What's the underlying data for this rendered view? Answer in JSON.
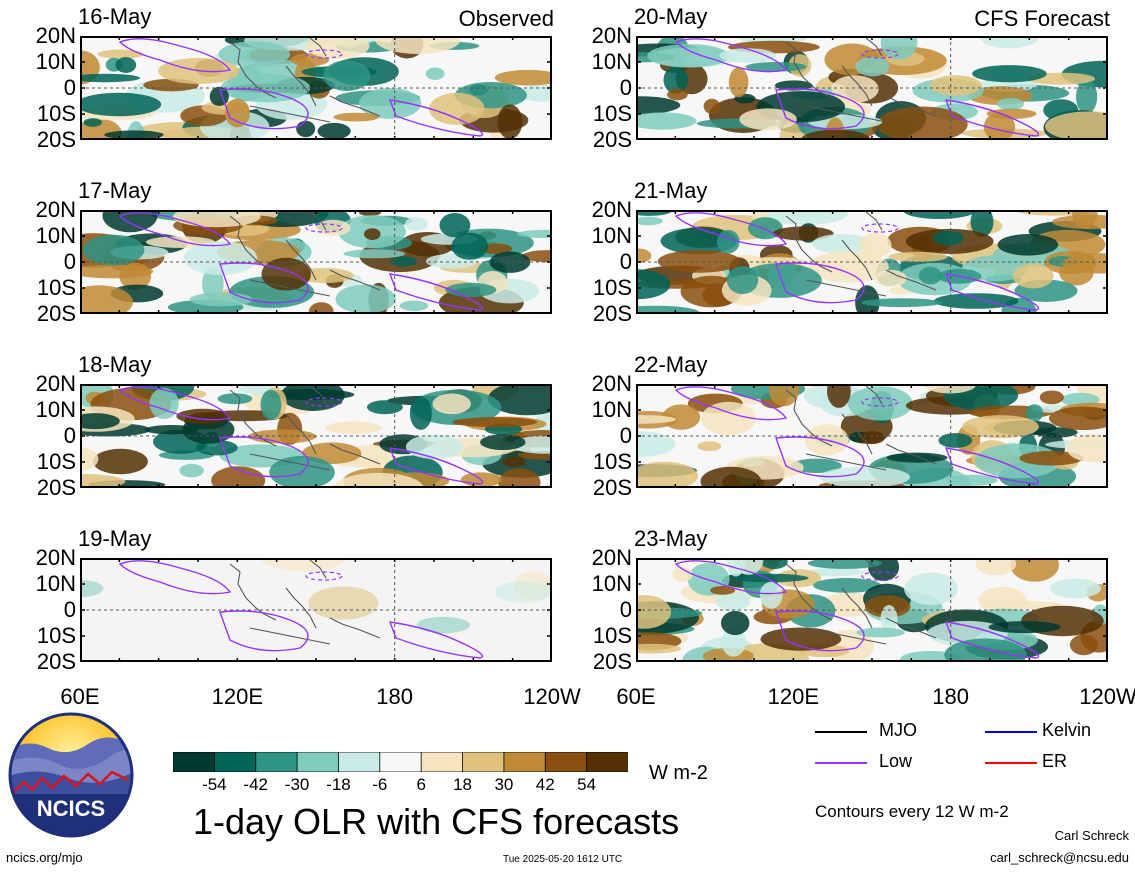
{
  "panels": [
    {
      "date": "16-May",
      "corner": "Observed",
      "col": 0,
      "row": 0,
      "observed": true
    },
    {
      "date": "17-May",
      "corner": "",
      "col": 0,
      "row": 1,
      "observed": true
    },
    {
      "date": "18-May",
      "corner": "",
      "col": 0,
      "row": 2,
      "observed": true
    },
    {
      "date": "19-May",
      "corner": "",
      "col": 0,
      "row": 3,
      "observed": false,
      "mostly_blank": true
    },
    {
      "date": "20-May",
      "corner": "CFS Forecast",
      "col": 1,
      "row": 0,
      "observed": false
    },
    {
      "date": "21-May",
      "corner": "",
      "col": 1,
      "row": 1,
      "observed": false
    },
    {
      "date": "22-May",
      "corner": "",
      "col": 1,
      "row": 2,
      "observed": false
    },
    {
      "date": "23-May",
      "corner": "",
      "col": 1,
      "row": 3,
      "observed": false
    }
  ],
  "lat_labels": [
    "20N",
    "10N",
    "0",
    "10S",
    "20S"
  ],
  "lon_labels": [
    "60E",
    "120E",
    "180",
    "120W"
  ],
  "colorbar": {
    "labels": [
      "-54",
      "-42",
      "-30",
      "-18",
      "-6",
      "6",
      "18",
      "30",
      "42",
      "54"
    ],
    "colors": [
      "#00392f",
      "#006457",
      "#2e9484",
      "#7fcbbd",
      "#c9ebe5",
      "#f7f7f7",
      "#f5e4bf",
      "#dfc27c",
      "#c08935",
      "#8a4f0d",
      "#543005"
    ],
    "units": "W m-2"
  },
  "title": "1-day OLR with CFS forecasts",
  "legend": [
    {
      "label": "MJO",
      "color": "#000000"
    },
    {
      "label": "Kelvin",
      "color": "#0000ff"
    },
    {
      "label": "Low",
      "color": "#9933ff"
    },
    {
      "label": "ER",
      "color": "#ff0000"
    }
  ],
  "contour_note": "Contours every 12 W m-2",
  "logo_text": "NCICS",
  "author": "Carl Schreck",
  "email": "carl_schreck@ncsu.edu",
  "website": "ncics.org/mjo",
  "timestamp": "Tue 2025-05-20 1612 UTC"
}
